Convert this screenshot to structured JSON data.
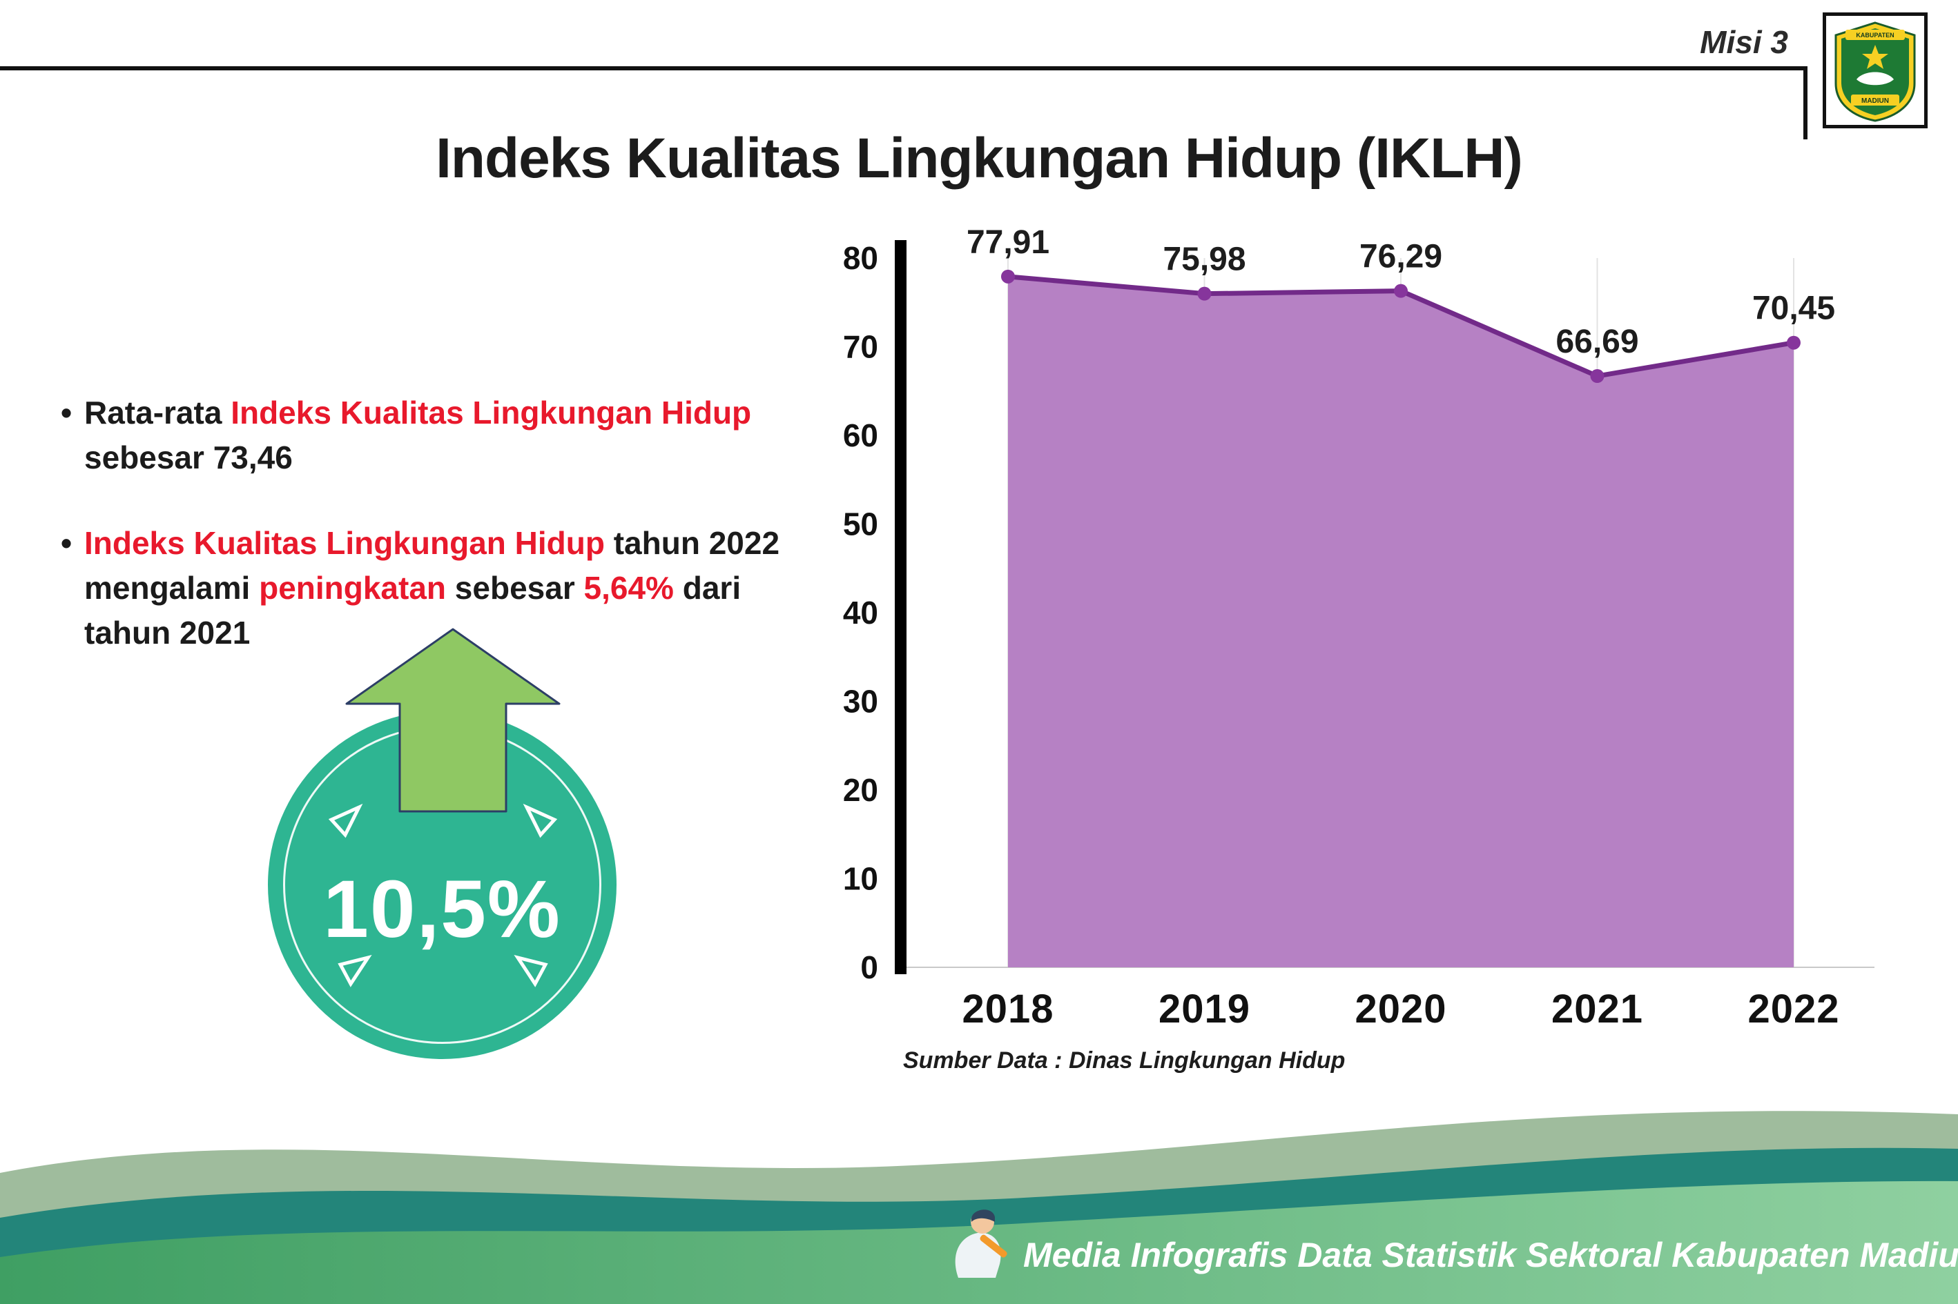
{
  "palette": {
    "accent_red": "#e8192c",
    "badge_teal": "#2eb592",
    "arrow_green": "#8fc863",
    "footer_green": "#4aa96b"
  },
  "header": {
    "misi_label": "Misi 3",
    "title": "Indeks Kualitas Lingkungan Hidup (IKLH)",
    "logo_top": "KABUPATEN",
    "logo_bottom": "MADIUN"
  },
  "bullet1": {
    "pre": "Rata-rata ",
    "highlight": "Indeks Kualitas Lingkungan Hidup",
    "post": " sebesar 73,46"
  },
  "bullet2": {
    "red1": "Indeks Kualitas Lingkungan Hidup",
    "mid1": " tahun 2022 mengalami ",
    "red2": "peningkatan",
    "mid2": " sebesar ",
    "red3": "5,64%",
    "post": " dari tahun 2021"
  },
  "badge": {
    "value": "10,5%"
  },
  "chart_data": {
    "type": "area",
    "title": "",
    "categories": [
      "2018",
      "2019",
      "2020",
      "2021",
      "2022"
    ],
    "values": [
      77.91,
      75.98,
      76.29,
      66.69,
      70.45
    ],
    "point_labels": [
      "77,91",
      "75,98",
      "76,29",
      "66,69",
      "70,45"
    ],
    "ylim": [
      0,
      80
    ],
    "ytick_step": 10,
    "grid": "vertical-light",
    "legend": "none",
    "source_note": "Sumber Data : Dinas Lingkungan Hidup",
    "colors": {
      "area_fill": "#b681c4",
      "line": "#722a89",
      "point": "#86359c",
      "axis": "#000000"
    }
  },
  "footer": {
    "credit": "Media Infografis Data Statistik Sektoral Kabupaten Madiun |"
  }
}
